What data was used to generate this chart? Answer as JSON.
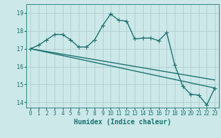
{
  "bg_color": "#cce8e8",
  "grid_color": "#b0cece",
  "line_color": "#1a7070",
  "xlabel": "Humidex (Indice chaleur)",
  "xlim": [
    -0.5,
    23.5
  ],
  "ylim": [
    13.7,
    19.5
  ],
  "yticks": [
    14,
    15,
    16,
    17,
    18,
    19
  ],
  "xticks": [
    0,
    1,
    2,
    3,
    4,
    5,
    6,
    7,
    8,
    9,
    10,
    11,
    12,
    13,
    14,
    15,
    16,
    17,
    18,
    19,
    20,
    21,
    22,
    23
  ],
  "curve1_x": [
    0,
    1,
    2,
    3,
    4,
    5,
    6,
    7,
    8,
    9,
    10,
    11,
    12,
    13,
    14,
    15,
    16,
    17,
    18,
    19,
    20,
    21,
    22,
    23
  ],
  "curve1_y": [
    17.0,
    17.2,
    17.5,
    17.8,
    17.8,
    17.5,
    17.1,
    17.1,
    17.5,
    18.3,
    18.95,
    18.6,
    18.55,
    17.55,
    17.6,
    17.6,
    17.45,
    17.9,
    16.1,
    14.9,
    14.45,
    14.4,
    13.85,
    14.8
  ],
  "line2_x": [
    0,
    23
  ],
  "line2_y": [
    17.0,
    14.8
  ],
  "line3_x": [
    0,
    23
  ],
  "line3_y": [
    17.0,
    15.25
  ],
  "marker_style": "+",
  "marker_size": 4,
  "line_width": 1.0,
  "xlabel_fontsize": 7,
  "tick_fontsize": 5.5,
  "ytick_fontsize": 6
}
